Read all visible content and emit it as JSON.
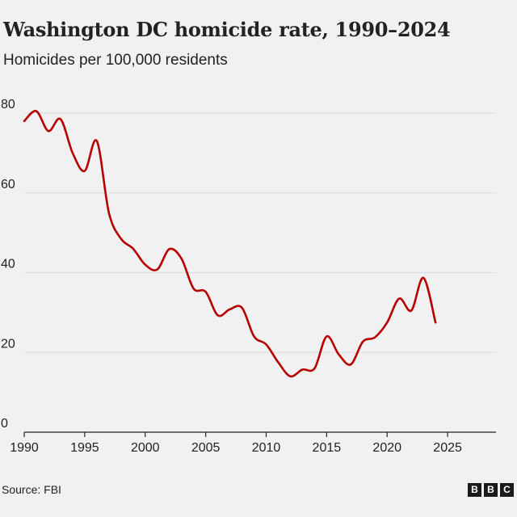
{
  "chart_data": {
    "type": "line",
    "title": "Washington DC homicide rate, 1990–2024",
    "subtitle": "Homicides per 100,000 residents",
    "xlabel": "",
    "ylabel": "Homicides per 100,000 residents",
    "xlim": [
      1990,
      2029
    ],
    "ylim": [
      0,
      80
    ],
    "grid": true,
    "xticks": [
      1990,
      1995,
      2000,
      2005,
      2010,
      2015,
      2020,
      2025
    ],
    "yticks": [
      0,
      20,
      40,
      60,
      80
    ],
    "series": [
      {
        "name": "Homicide rate",
        "color": "#b80000",
        "x": [
          1990,
          1991,
          1992,
          1993,
          1994,
          1995,
          1996,
          1997,
          1998,
          1999,
          2000,
          2001,
          2002,
          2003,
          2004,
          2005,
          2006,
          2007,
          2008,
          2009,
          2010,
          2011,
          2012,
          2013,
          2014,
          2015,
          2016,
          2017,
          2018,
          2019,
          2020,
          2021,
          2022,
          2023,
          2024
        ],
        "values": [
          78,
          80.5,
          75.5,
          78.5,
          70,
          65.5,
          73,
          55,
          48.5,
          46,
          42,
          40.8,
          45.9,
          43.5,
          36,
          35.2,
          29.3,
          30.8,
          31.2,
          24,
          22,
          17.5,
          14,
          15.7,
          16,
          24,
          19.5,
          17,
          22.7,
          23.8,
          27.5,
          33.5,
          30.5,
          38.7,
          27.5
        ]
      }
    ]
  },
  "source": "Source: FBI",
  "logo": [
    "B",
    "B",
    "C"
  ]
}
